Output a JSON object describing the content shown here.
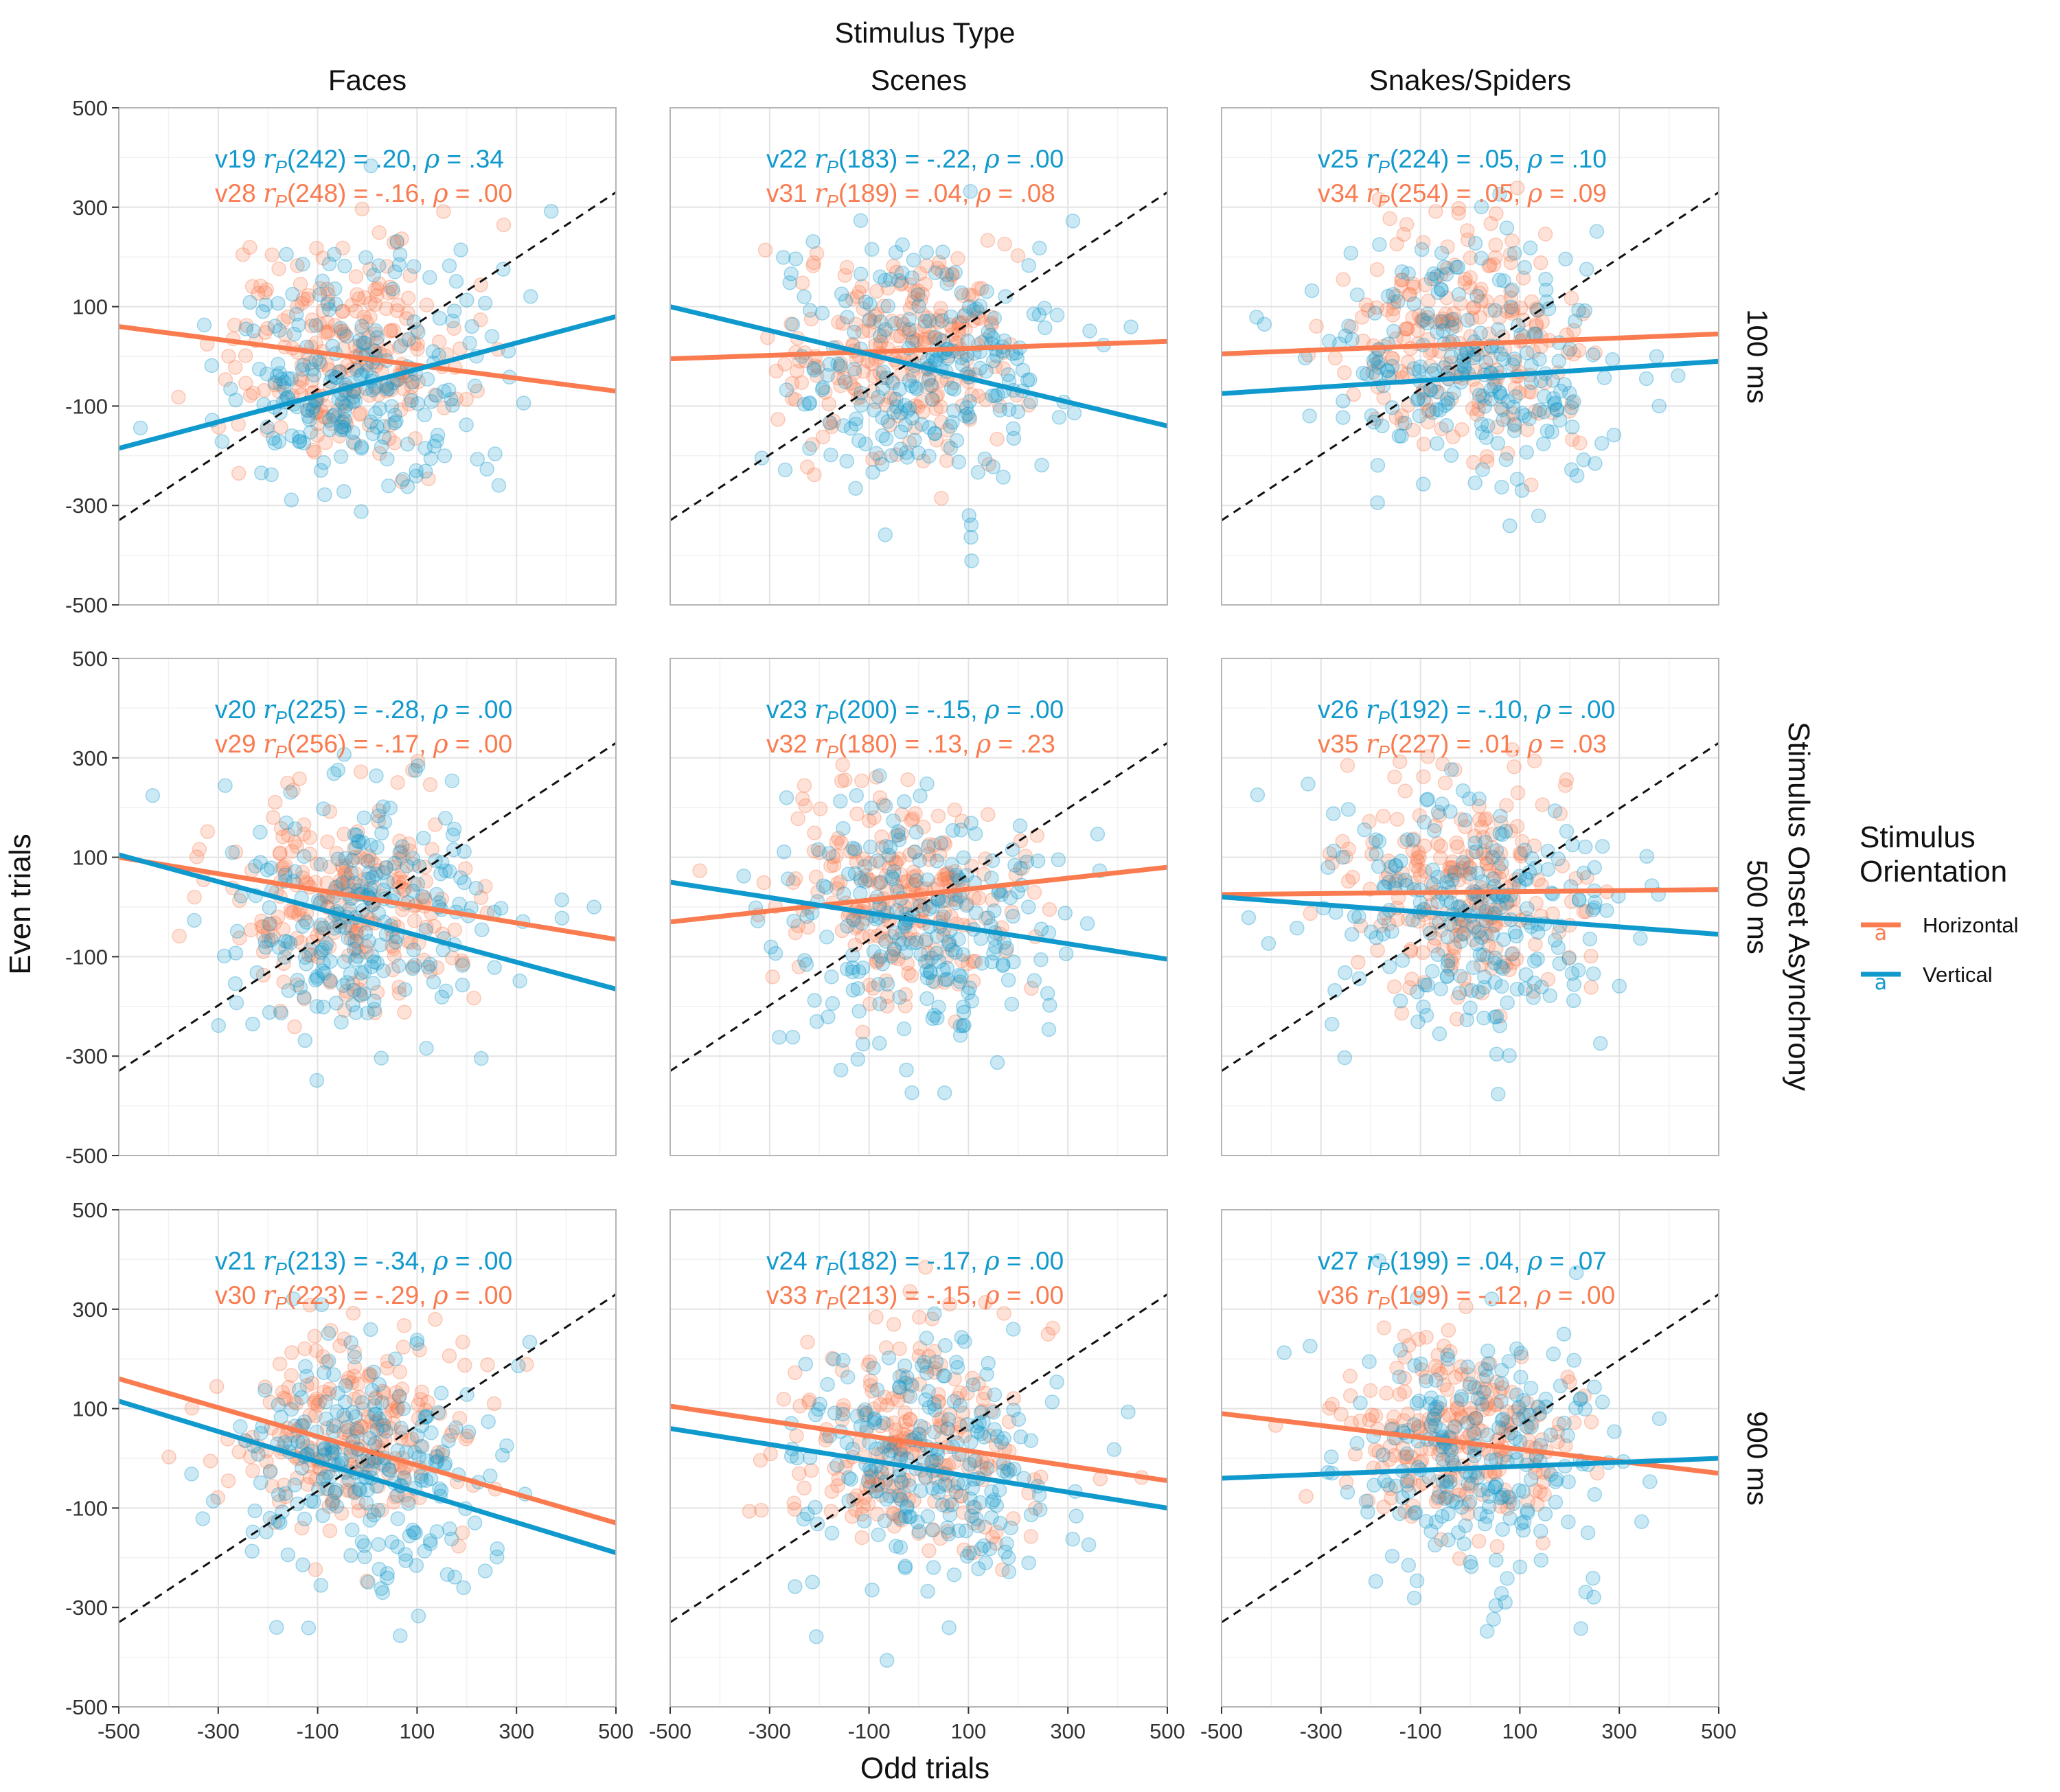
{
  "chart_data": {
    "type": "scatter",
    "title": "Stimulus Type",
    "xlabel": "Odd trials",
    "ylabel": "Even trials",
    "row_facet_label": "Stimulus Onset Asynchrony",
    "xlim": [
      -500,
      500
    ],
    "ylim": [
      -500,
      500
    ],
    "x_ticks": [
      "-500",
      "-300",
      "-100",
      "100",
      "300",
      "500"
    ],
    "y_ticks": [
      "500",
      "300",
      "100",
      "-100",
      "-300",
      "-500"
    ],
    "columns": [
      "Faces",
      "Scenes",
      "Snakes/Spiders"
    ],
    "rows": [
      "100 ms",
      "500 ms",
      "900 ms"
    ],
    "grid": true,
    "reference_line": {
      "style": "dashed",
      "slope": 1,
      "intercept": 0
    },
    "colors": {
      "Horizontal": "#F97B4F",
      "Vertical": "#1099CC"
    },
    "legend": {
      "title": "Stimulus Orientation",
      "placement": "right",
      "entries": [
        {
          "name": "Horizontal",
          "key": "Horizontal"
        },
        {
          "name": "Vertical",
          "key": "Vertical"
        }
      ]
    },
    "panels": [
      {
        "row": 0,
        "col": 0,
        "Vertical": {
          "id": "v19",
          "label": "(242) = .20,",
          "rho": "= .34",
          "line": [
            [
              -500,
              -185
            ],
            [
              500,
              80
            ]
          ],
          "mx": -30,
          "my": -40,
          "sx": 140,
          "sy": 125
        },
        "Horizontal": {
          "id": "v28",
          "label": "(248) = -.16,",
          "rho": "= .00",
          "line": [
            [
              -500,
              60
            ],
            [
              500,
              -70
            ]
          ],
          "mx": -50,
          "my": 10,
          "sx": 120,
          "sy": 105
        }
      },
      {
        "row": 0,
        "col": 1,
        "Vertical": {
          "id": "v22",
          "label": "(183) = -.22,",
          "rho": "= .00",
          "line": [
            [
              -500,
              100
            ],
            [
              500,
              -140
            ]
          ],
          "mx": 10,
          "my": -20,
          "sx": 140,
          "sy": 130
        },
        "Horizontal": {
          "id": "v31",
          "label": "(189) = .04,",
          "rho": "= .08",
          "line": [
            [
              -500,
              -5
            ],
            [
              500,
              30
            ]
          ],
          "mx": -40,
          "my": 20,
          "sx": 120,
          "sy": 100
        }
      },
      {
        "row": 0,
        "col": 2,
        "Vertical": {
          "id": "v25",
          "label": "(224) = .05,",
          "rho": "= .10",
          "line": [
            [
              -500,
              -75
            ],
            [
              500,
              -10
            ]
          ],
          "mx": 20,
          "my": -30,
          "sx": 145,
          "sy": 130
        },
        "Horizontal": {
          "id": "v34",
          "label": "(254) = .05,",
          "rho": "= .09",
          "line": [
            [
              -500,
              5
            ],
            [
              500,
              45
            ]
          ],
          "mx": -20,
          "my": 30,
          "sx": 120,
          "sy": 110
        }
      },
      {
        "row": 1,
        "col": 0,
        "Vertical": {
          "id": "v20",
          "label": "(225) = -.28,",
          "rho": "= .00",
          "line": [
            [
              -500,
              105
            ],
            [
              500,
              -165
            ]
          ],
          "mx": -10,
          "my": -20,
          "sx": 140,
          "sy": 125
        },
        "Horizontal": {
          "id": "v29",
          "label": "(256) = -.17,",
          "rho": "= .00",
          "line": [
            [
              -500,
              100
            ],
            [
              500,
              -65
            ]
          ],
          "mx": -40,
          "my": 20,
          "sx": 120,
          "sy": 100
        }
      },
      {
        "row": 1,
        "col": 1,
        "Vertical": {
          "id": "v23",
          "label": "(200) = -.15,",
          "rho": "= .00",
          "line": [
            [
              -500,
              50
            ],
            [
              500,
              -105
            ]
          ],
          "mx": 10,
          "my": -20,
          "sx": 140,
          "sy": 130
        },
        "Horizontal": {
          "id": "v32",
          "label": "(180) = .13,",
          "rho": "= .23",
          "line": [
            [
              -500,
              -30
            ],
            [
              500,
              80
            ]
          ],
          "mx": -30,
          "my": 30,
          "sx": 120,
          "sy": 100
        }
      },
      {
        "row": 1,
        "col": 2,
        "Vertical": {
          "id": "v26",
          "label": "(192) = -.10,",
          "rho": "= .00",
          "line": [
            [
              -500,
              20
            ],
            [
              500,
              -55
            ]
          ],
          "mx": 10,
          "my": -10,
          "sx": 145,
          "sy": 125
        },
        "Horizontal": {
          "id": "v35",
          "label": "(227) = .01,",
          "rho": "= .03",
          "line": [
            [
              -500,
              25
            ],
            [
              500,
              35
            ]
          ],
          "mx": -20,
          "my": 40,
          "sx": 120,
          "sy": 105
        }
      },
      {
        "row": 2,
        "col": 0,
        "Vertical": {
          "id": "v21",
          "label": "(213) = -.34,",
          "rho": "= .00",
          "line": [
            [
              -500,
              115
            ],
            [
              500,
              -190
            ]
          ],
          "mx": -10,
          "my": -30,
          "sx": 140,
          "sy": 125
        },
        "Horizontal": {
          "id": "v30",
          "label": "(223) = -.29,",
          "rho": "= .00",
          "line": [
            [
              -500,
              160
            ],
            [
              500,
              -130
            ]
          ],
          "mx": -40,
          "my": 40,
          "sx": 120,
          "sy": 100
        }
      },
      {
        "row": 2,
        "col": 1,
        "Vertical": {
          "id": "v24",
          "label": "(182) = -.17,",
          "rho": "= .00",
          "line": [
            [
              -500,
              60
            ],
            [
              500,
              -100
            ]
          ],
          "mx": 10,
          "my": -10,
          "sx": 145,
          "sy": 130
        },
        "Horizontal": {
          "id": "v33",
          "label": "(213) = -.15,",
          "rho": "= .00",
          "line": [
            [
              -500,
              105
            ],
            [
              500,
              -45
            ]
          ],
          "mx": -20,
          "my": 40,
          "sx": 125,
          "sy": 110
        }
      },
      {
        "row": 2,
        "col": 2,
        "Vertical": {
          "id": "v27",
          "label": "(199) = .04,",
          "rho": "= .07",
          "line": [
            [
              -500,
              -40
            ],
            [
              500,
              0
            ]
          ],
          "mx": 20,
          "my": -10,
          "sx": 140,
          "sy": 125
        },
        "Horizontal": {
          "id": "v36",
          "label": "(199) = -.12,",
          "rho": "= .00",
          "line": [
            [
              -500,
              90
            ],
            [
              500,
              -30
            ]
          ],
          "mx": -20,
          "my": 40,
          "sx": 120,
          "sy": 100
        }
      }
    ]
  }
}
